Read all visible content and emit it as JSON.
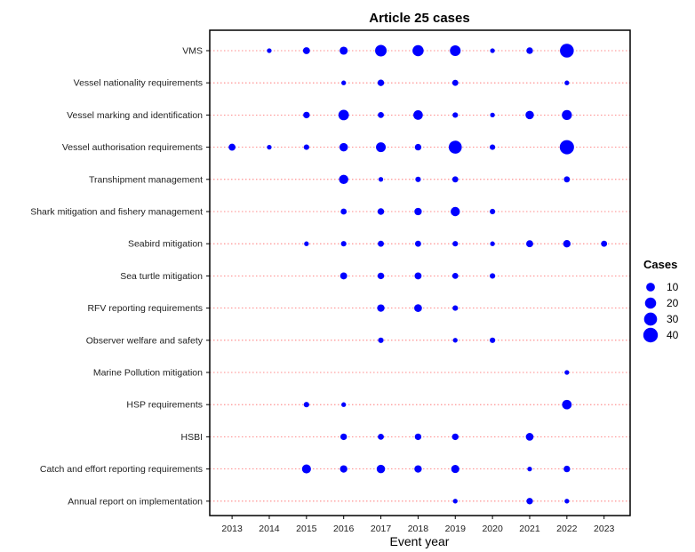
{
  "chart_data": {
    "type": "scatter",
    "title": "Article 25 cases",
    "xlabel": "Event year",
    "ylabel": "",
    "x_ticks": [
      2013,
      2014,
      2015,
      2016,
      2017,
      2018,
      2019,
      2020,
      2021,
      2022,
      2023
    ],
    "xlim": [
      2012.4,
      2023.7
    ],
    "categories": [
      "VMS",
      "Vessel nationality requirements",
      "Vessel marking and identification",
      "Vessel authorisation requirements",
      "Transhipment management",
      "Shark mitigation and fishery management",
      "Seabird mitigation",
      "Sea turtle mitigation",
      "RFV reporting requirements",
      "Observer welfare and safety",
      "Marine Pollution mitigation",
      "HSP requirements",
      "HSBI",
      "Catch and effort reporting requirements",
      "Annual report on implementation"
    ],
    "size_variable": "Cases",
    "grid": "dotted-horizontal",
    "point_color": "#0000ff",
    "grid_color": "#ff6666",
    "legend": {
      "title": "Cases",
      "placement": "right",
      "values": [
        10,
        20,
        30,
        40
      ],
      "labels": [
        "10",
        "20",
        "30",
        "40"
      ]
    },
    "points": [
      {
        "category": "VMS",
        "year": 2014,
        "cases": 1
      },
      {
        "category": "VMS",
        "year": 2015,
        "cases": 5
      },
      {
        "category": "VMS",
        "year": 2016,
        "cases": 8
      },
      {
        "category": "VMS",
        "year": 2017,
        "cases": 22
      },
      {
        "category": "VMS",
        "year": 2018,
        "cases": 20
      },
      {
        "category": "VMS",
        "year": 2019,
        "cases": 18
      },
      {
        "category": "VMS",
        "year": 2020,
        "cases": 1
      },
      {
        "category": "VMS",
        "year": 2021,
        "cases": 4
      },
      {
        "category": "VMS",
        "year": 2022,
        "cases": 35
      },
      {
        "category": "Vessel nationality requirements",
        "year": 2016,
        "cases": 1
      },
      {
        "category": "Vessel nationality requirements",
        "year": 2017,
        "cases": 4
      },
      {
        "category": "Vessel nationality requirements",
        "year": 2019,
        "cases": 3
      },
      {
        "category": "Vessel nationality requirements",
        "year": 2022,
        "cases": 1
      },
      {
        "category": "Vessel marking and identification",
        "year": 2015,
        "cases": 4
      },
      {
        "category": "Vessel marking and identification",
        "year": 2016,
        "cases": 17
      },
      {
        "category": "Vessel marking and identification",
        "year": 2017,
        "cases": 3
      },
      {
        "category": "Vessel marking and identification",
        "year": 2018,
        "cases": 13
      },
      {
        "category": "Vessel marking and identification",
        "year": 2019,
        "cases": 2
      },
      {
        "category": "Vessel marking and identification",
        "year": 2020,
        "cases": 1
      },
      {
        "category": "Vessel marking and identification",
        "year": 2021,
        "cases": 9
      },
      {
        "category": "Vessel marking and identification",
        "year": 2022,
        "cases": 15
      },
      {
        "category": "Vessel authorisation requirements",
        "year": 2013,
        "cases": 5
      },
      {
        "category": "Vessel authorisation requirements",
        "year": 2014,
        "cases": 1
      },
      {
        "category": "Vessel authorisation requirements",
        "year": 2015,
        "cases": 2
      },
      {
        "category": "Vessel authorisation requirements",
        "year": 2016,
        "cases": 9
      },
      {
        "category": "Vessel authorisation requirements",
        "year": 2017,
        "cases": 14
      },
      {
        "category": "Vessel authorisation requirements",
        "year": 2018,
        "cases": 4
      },
      {
        "category": "Vessel authorisation requirements",
        "year": 2019,
        "cases": 30
      },
      {
        "category": "Vessel authorisation requirements",
        "year": 2020,
        "cases": 2
      },
      {
        "category": "Vessel authorisation requirements",
        "year": 2022,
        "cases": 38
      },
      {
        "category": "Transhipment management",
        "year": 2016,
        "cases": 12
      },
      {
        "category": "Transhipment management",
        "year": 2017,
        "cases": 1
      },
      {
        "category": "Transhipment management",
        "year": 2018,
        "cases": 2
      },
      {
        "category": "Transhipment management",
        "year": 2019,
        "cases": 3
      },
      {
        "category": "Transhipment management",
        "year": 2022,
        "cases": 3
      },
      {
        "category": "Shark mitigation and fishery management",
        "year": 2016,
        "cases": 3
      },
      {
        "category": "Shark mitigation and fishery management",
        "year": 2017,
        "cases": 4
      },
      {
        "category": "Shark mitigation and fishery management",
        "year": 2018,
        "cases": 6
      },
      {
        "category": "Shark mitigation and fishery management",
        "year": 2019,
        "cases": 12
      },
      {
        "category": "Shark mitigation and fishery management",
        "year": 2020,
        "cases": 2
      },
      {
        "category": "Seabird mitigation",
        "year": 2015,
        "cases": 1
      },
      {
        "category": "Seabird mitigation",
        "year": 2016,
        "cases": 2
      },
      {
        "category": "Seabird mitigation",
        "year": 2017,
        "cases": 3
      },
      {
        "category": "Seabird mitigation",
        "year": 2018,
        "cases": 3
      },
      {
        "category": "Seabird mitigation",
        "year": 2019,
        "cases": 2
      },
      {
        "category": "Seabird mitigation",
        "year": 2020,
        "cases": 1
      },
      {
        "category": "Seabird mitigation",
        "year": 2021,
        "cases": 5
      },
      {
        "category": "Seabird mitigation",
        "year": 2022,
        "cases": 6
      },
      {
        "category": "Seabird mitigation",
        "year": 2023,
        "cases": 3
      },
      {
        "category": "Sea turtle mitigation",
        "year": 2016,
        "cases": 5
      },
      {
        "category": "Sea turtle mitigation",
        "year": 2017,
        "cases": 4
      },
      {
        "category": "Sea turtle mitigation",
        "year": 2018,
        "cases": 5
      },
      {
        "category": "Sea turtle mitigation",
        "year": 2019,
        "cases": 3
      },
      {
        "category": "Sea turtle mitigation",
        "year": 2020,
        "cases": 2
      },
      {
        "category": "RFV reporting requirements",
        "year": 2017,
        "cases": 6
      },
      {
        "category": "RFV reporting requirements",
        "year": 2018,
        "cases": 7
      },
      {
        "category": "RFV reporting requirements",
        "year": 2019,
        "cases": 2
      },
      {
        "category": "Observer welfare and safety",
        "year": 2017,
        "cases": 2
      },
      {
        "category": "Observer welfare and safety",
        "year": 2019,
        "cases": 1
      },
      {
        "category": "Observer welfare and safety",
        "year": 2020,
        "cases": 2
      },
      {
        "category": "Marine Pollution mitigation",
        "year": 2022,
        "cases": 1
      },
      {
        "category": "HSP requirements",
        "year": 2015,
        "cases": 2
      },
      {
        "category": "HSP requirements",
        "year": 2016,
        "cases": 1
      },
      {
        "category": "HSP requirements",
        "year": 2022,
        "cases": 13
      },
      {
        "category": "HSBI",
        "year": 2016,
        "cases": 4
      },
      {
        "category": "HSBI",
        "year": 2017,
        "cases": 3
      },
      {
        "category": "HSBI",
        "year": 2018,
        "cases": 4
      },
      {
        "category": "HSBI",
        "year": 2019,
        "cases": 4
      },
      {
        "category": "HSBI",
        "year": 2021,
        "cases": 7
      },
      {
        "category": "Catch and effort reporting requirements",
        "year": 2015,
        "cases": 11
      },
      {
        "category": "Catch and effort reporting requirements",
        "year": 2016,
        "cases": 6
      },
      {
        "category": "Catch and effort reporting requirements",
        "year": 2017,
        "cases": 9
      },
      {
        "category": "Catch and effort reporting requirements",
        "year": 2018,
        "cases": 6
      },
      {
        "category": "Catch and effort reporting requirements",
        "year": 2019,
        "cases": 8
      },
      {
        "category": "Catch and effort reporting requirements",
        "year": 2021,
        "cases": 1
      },
      {
        "category": "Catch and effort reporting requirements",
        "year": 2022,
        "cases": 4
      },
      {
        "category": "Annual report on implementation",
        "year": 2019,
        "cases": 1
      },
      {
        "category": "Annual report on implementation",
        "year": 2021,
        "cases": 4
      },
      {
        "category": "Annual report on implementation",
        "year": 2022,
        "cases": 1
      }
    ]
  }
}
